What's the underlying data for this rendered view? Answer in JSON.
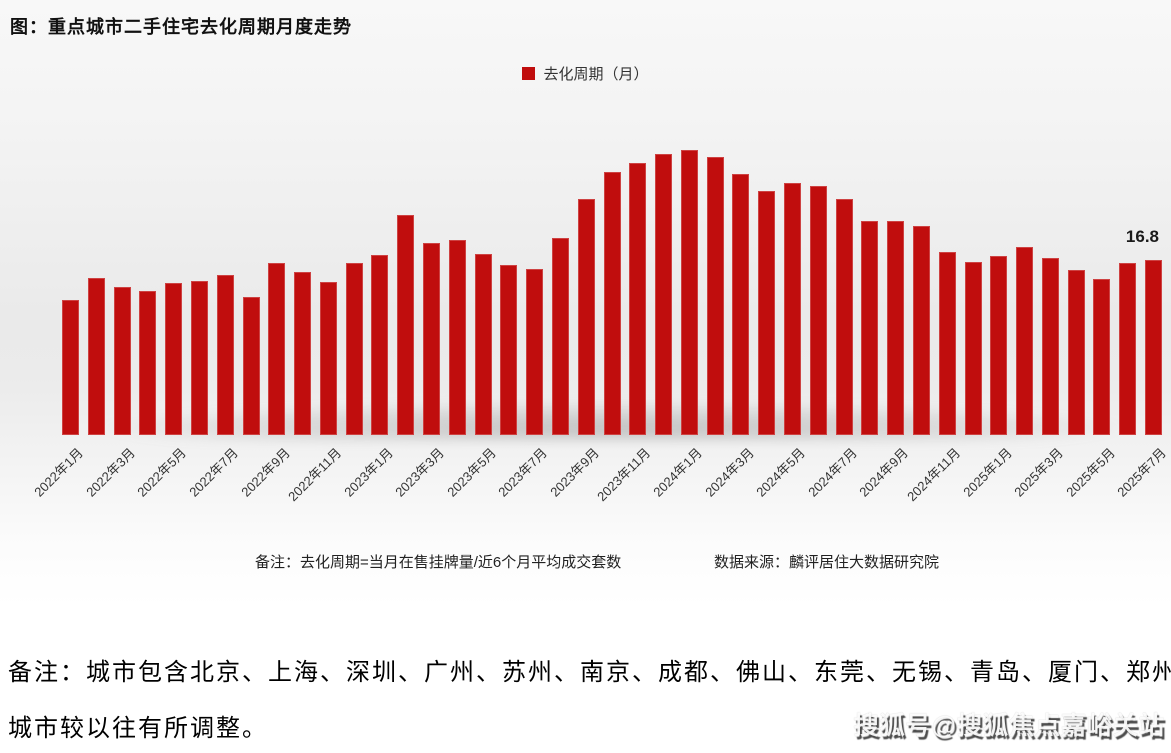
{
  "chart": {
    "title": "图：重点城市二手住宅去化周期月度走势",
    "legend_label": "去化周期（月）",
    "annotation_label": "16.8",
    "note_left": "备注：去化周期=当月在售挂牌量/近6个月平均成交套数",
    "note_right": "数据来源：麟评居住大数据研究院",
    "colors": {
      "bar": "#c00d0d",
      "legend_swatch": "#c00d0d",
      "annotation_text": "#1a1a1a"
    }
  },
  "chart_data": {
    "type": "bar",
    "title": "图：重点城市二手住宅去化周期月度走势",
    "legend": [
      "去化周期（月）"
    ],
    "legend_position": "top-center",
    "grid": false,
    "ylim": [
      0,
      30
    ],
    "bar_color": "#c00d0d",
    "categories": [
      "2022年1月",
      "2022年2月",
      "2022年3月",
      "2022年4月",
      "2022年5月",
      "2022年6月",
      "2022年7月",
      "2022年8月",
      "2022年9月",
      "2022年10月",
      "2022年11月",
      "2022年12月",
      "2023年1月",
      "2023年2月",
      "2023年3月",
      "2023年4月",
      "2023年5月",
      "2023年6月",
      "2023年7月",
      "2023年8月",
      "2023年9月",
      "2023年10月",
      "2023年11月",
      "2023年12月",
      "2024年1月",
      "2024年2月",
      "2024年3月",
      "2024年4月",
      "2024年5月",
      "2024年6月",
      "2024年7月",
      "2024年8月",
      "2024年9月",
      "2024年10月",
      "2024年11月",
      "2024年12月",
      "2025年1月",
      "2025年2月",
      "2025年3月",
      "2025年4月",
      "2025年5月",
      "2025年6月",
      "2025年7月"
    ],
    "values": [
      13.0,
      15.1,
      14.2,
      13.8,
      14.6,
      14.8,
      15.4,
      13.2,
      16.5,
      15.6,
      14.7,
      16.5,
      17.3,
      21.1,
      18.4,
      18.7,
      17.4,
      16.3,
      15.9,
      18.9,
      22.7,
      25.2,
      26.1,
      27.0,
      27.4,
      26.7,
      25.1,
      23.4,
      24.2,
      23.9,
      22.7,
      20.5,
      20.5,
      20.1,
      17.6,
      16.6,
      17.2,
      18.0,
      17.0,
      15.8,
      15.0,
      16.5,
      16.8
    ],
    "visible_tick_labels": [
      "2022年1月",
      "2022年3月",
      "2022年5月",
      "2022年7月",
      "2022年9月",
      "2022年11月",
      "2023年1月",
      "2023年3月",
      "2023年5月",
      "2023年7月",
      "2023年9月",
      "2023年11月",
      "2024年1月",
      "2024年3月",
      "2024年5月",
      "2024年7月",
      "2024年9月",
      "2024年11月",
      "2025年1月",
      "2025年3月",
      "2025年5月",
      "2025年7月"
    ],
    "annotations": [
      {
        "category": "2025年7月",
        "text": "16.8"
      }
    ]
  },
  "footer": {
    "note_line1": "备注：城市包含北京、上海、深圳、广州、苏州、南京、成都、佛山、东莞、无锡、青岛、厦门、郑州，",
    "note_line2": "城市较以往有所调整。",
    "watermark": "搜狐号@搜狐焦点嘉峪关站"
  }
}
